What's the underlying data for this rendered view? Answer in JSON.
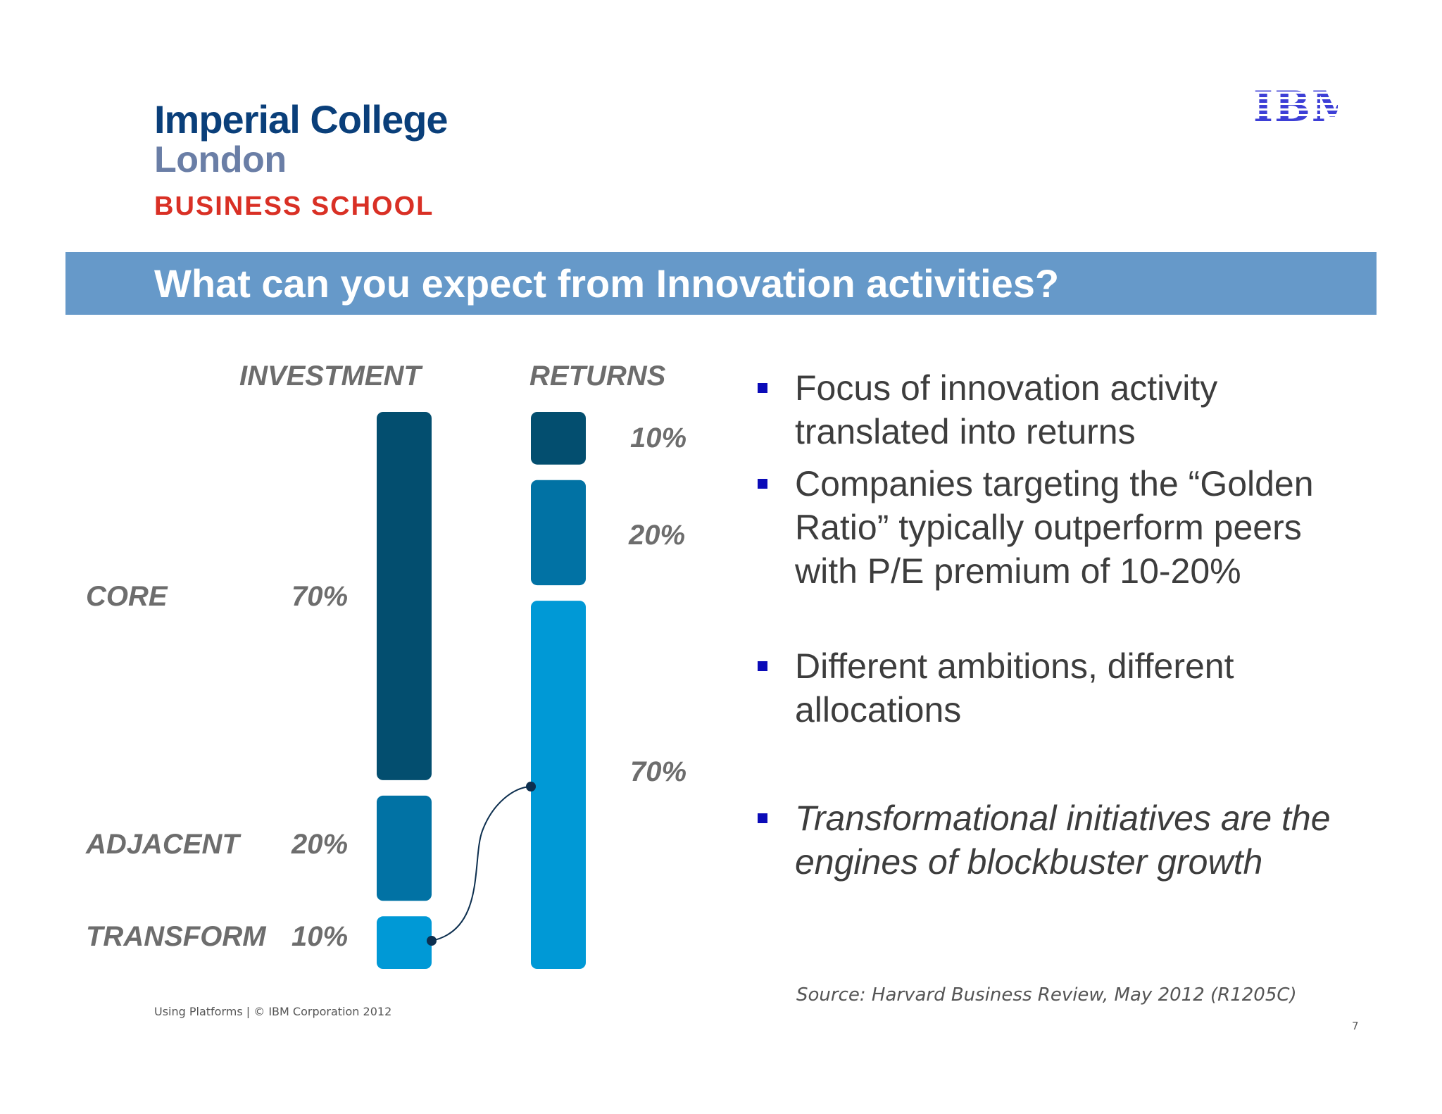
{
  "logo": {
    "line1": "Imperial College",
    "line2": "London",
    "line3": "BUSINESS SCHOOL"
  },
  "ibm_logo": "IBM",
  "title": "What can you expect from Innovation activities?",
  "chart_data": {
    "type": "bar",
    "title": "",
    "series": [
      {
        "name": "INVESTMENT",
        "values": [
          70,
          20,
          10
        ]
      },
      {
        "name": "RETURNS",
        "values": [
          10,
          20,
          70
        ]
      }
    ],
    "categories": [
      "CORE",
      "ADJACENT",
      "TRANSFORM"
    ],
    "investment_labels": [
      "70%",
      "20%",
      "10%"
    ],
    "returns_labels": [
      "10%",
      "20%",
      "70%"
    ],
    "colors": {
      "core": "#034e6f",
      "adjacent": "#0172a4",
      "transform": "#0099d6"
    }
  },
  "bullets": [
    {
      "text": "Focus of innovation activity translated into returns",
      "italic": false
    },
    {
      "text": "Companies targeting the “Golden Ratio” typically outperform peers with P/E premium of 10-20%",
      "italic": false
    },
    {
      "text": "Different ambitions, different allocations",
      "italic": false
    },
    {
      "text": "Transformational initiatives are the engines of blockbuster growth",
      "italic": true
    }
  ],
  "source": "Source: Harvard Business Review, May 2012 (R1205C)",
  "footer": "Using Platforms | © IBM Corporation 2012",
  "page_number": "7"
}
